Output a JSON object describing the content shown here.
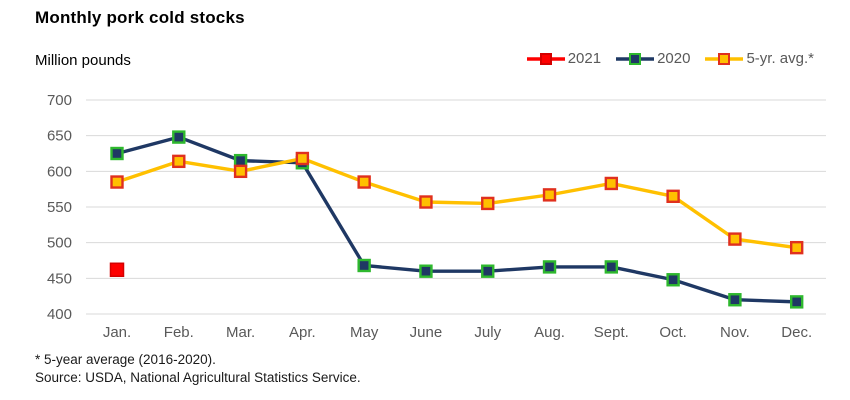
{
  "title": "Monthly pork cold stocks",
  "y_axis_label": "Million pounds",
  "footnote": "* 5-year average (2016-2020).",
  "source": "Source: USDA, National Agricultural Statistics Service.",
  "chart_data": {
    "type": "line",
    "title": "Monthly pork cold stocks",
    "ylabel": "Million pounds",
    "ylim": [
      400,
      700
    ],
    "ytick_step": 50,
    "ytick_labels": [
      "400",
      "450",
      "500",
      "550",
      "600",
      "650",
      "700"
    ],
    "grid": true,
    "grid_color": "#d9d9d9",
    "tick_label_color": "#595959",
    "legend_position": "top-right",
    "categories": [
      "Jan.",
      "Feb.",
      "Mar.",
      "Apr.",
      "May",
      "June",
      "July",
      "Aug.",
      "Sept.",
      "Oct.",
      "Nov.",
      "Dec."
    ],
    "series": [
      {
        "name": "2021",
        "line_color": "#fe0000",
        "marker_fill": "#fe0000",
        "marker_border": "#d40000",
        "marker_size": 13,
        "values": [
          462,
          null,
          null,
          null,
          null,
          null,
          null,
          null,
          null,
          null,
          null,
          null
        ]
      },
      {
        "name": "2020",
        "line_color": "#1f3864",
        "marker_fill": "#1f3864",
        "marker_border": "#2eb82e",
        "marker_size": 11,
        "values": [
          625,
          648,
          615,
          612,
          468,
          460,
          460,
          466,
          466,
          448,
          420,
          417
        ]
      },
      {
        "name": "5-yr. avg.*",
        "line_color": "#ffc000",
        "marker_fill": "#ffc000",
        "marker_border": "#e0301e",
        "marker_size": 11,
        "values": [
          585,
          614,
          600,
          618,
          585,
          557,
          555,
          567,
          583,
          565,
          505,
          493
        ]
      }
    ]
  }
}
